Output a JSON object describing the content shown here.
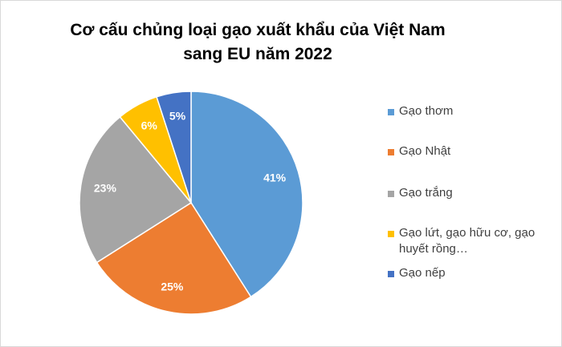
{
  "chart_data": {
    "type": "pie",
    "title": "Cơ cấu chủng loại gạo xuất khẩu của Việt Nam sang EU năm 2022",
    "categories": [
      "Gạo thơm",
      "Gạo Nhật",
      "Gạo trắng",
      "Gạo lứt, gạo hữu cơ, gạo huyết rồng…",
      "Gạo nếp"
    ],
    "values": [
      41,
      25,
      23,
      6,
      5
    ],
    "value_labels": [
      "41%",
      "25%",
      "23%",
      "6%",
      "5%"
    ],
    "colors": [
      "#5b9bd5",
      "#ed7d31",
      "#a5a5a5",
      "#ffc000",
      "#4472c4"
    ],
    "legend": "right"
  }
}
